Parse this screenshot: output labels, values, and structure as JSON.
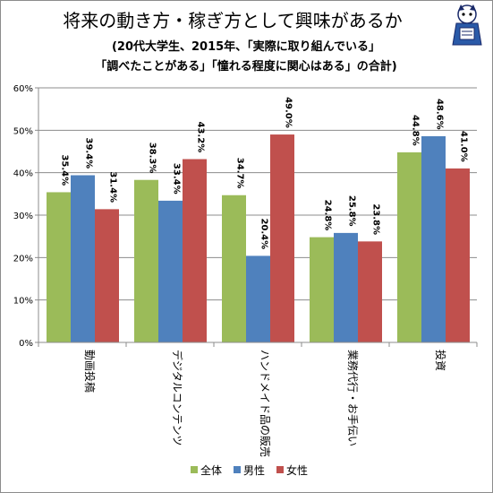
{
  "chart_data": {
    "type": "bar",
    "title": "将来の動き方・稼ぎ方として興味があるか",
    "subtitle_lines": [
      "(20代大学生、2015年、「実際に取り組んでいる」",
      "「調べたことがある」「憧れる程度に関心はある」の合計)"
    ],
    "categories": [
      "動画投稿",
      "デジタルコンテンツ",
      "ハンドメイド品の販売",
      "業務代行・お手伝い",
      "投資"
    ],
    "series": [
      {
        "name": "全体",
        "color": "#9BBB59",
        "values": [
          35.4,
          38.3,
          34.7,
          24.8,
          44.8
        ],
        "labels": [
          "35.4%",
          "38.3%",
          "34.7%",
          "24.8%",
          "44.8%"
        ]
      },
      {
        "name": "男性",
        "color": "#4F81BD",
        "values": [
          39.4,
          33.4,
          20.4,
          25.8,
          48.6
        ],
        "labels": [
          "39.4%",
          "33.4%",
          "20.4%",
          "25.8%",
          "48.6%"
        ]
      },
      {
        "name": "女性",
        "color": "#C0504D",
        "values": [
          31.4,
          43.2,
          49.0,
          23.8,
          41.0
        ],
        "labels": [
          "31.4%",
          "43.2%",
          "49.0%",
          "23.8%",
          "41.0%"
        ]
      }
    ],
    "ylim": [
      0,
      60
    ],
    "yticks": [
      "0%",
      "10%",
      "20%",
      "30%",
      "40%",
      "50%",
      "60%"
    ],
    "grid": true,
    "legend_position": "bottom",
    "mascot": "mascot-character-icon"
  }
}
